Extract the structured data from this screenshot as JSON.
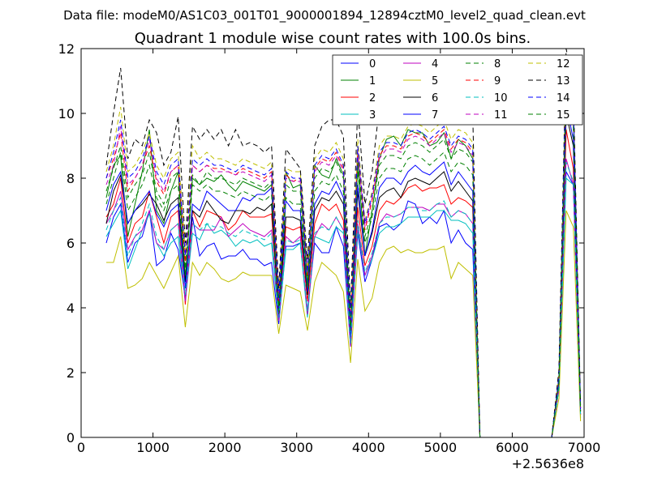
{
  "chart_data": {
    "type": "line",
    "suptitle": "Data file: modeM0/AS1C03_001T01_9000001894_12894cztM0_level2_quad_clean.evt",
    "title": "Quadrant 1 module wise count rates with 100.0s bins.",
    "xlabel": "",
    "ylabel": "",
    "x_offset_label": "+2.5636e8",
    "xlim": [
      0,
      7000
    ],
    "ylim": [
      0,
      12
    ],
    "xticks": [
      0,
      1000,
      2000,
      3000,
      4000,
      5000,
      6000,
      7000
    ],
    "yticks": [
      0,
      2,
      4,
      6,
      8,
      10,
      12
    ],
    "grid": false,
    "legend": {
      "placement": "top-right",
      "columns": 4
    },
    "x": [
      350,
      450,
      550,
      650,
      750,
      850,
      950,
      1050,
      1150,
      1250,
      1350,
      1450,
      1550,
      1650,
      1750,
      1850,
      1950,
      2050,
      2150,
      2250,
      2350,
      2450,
      2550,
      2650,
      2750,
      2850,
      2950,
      3050,
      3150,
      3250,
      3350,
      3450,
      3550,
      3650,
      3750,
      3850,
      3950,
      4050,
      4150,
      4250,
      4350,
      4450,
      4550,
      4650,
      4750,
      4850,
      4950,
      5050,
      5150,
      5250,
      5350,
      5450,
      5550,
      5650,
      5750,
      5850,
      5950,
      6050,
      6150,
      6250,
      6350,
      6450,
      6550,
      6650,
      6750,
      6850,
      6950
    ],
    "series": [
      {
        "name": "0",
        "color": "#0000ff",
        "dash": "",
        "values": [
          6.0,
          6.8,
          7.2,
          5.4,
          6.0,
          6.2,
          7.0,
          5.3,
          5.5,
          6.3,
          5.8,
          4.3,
          6.8,
          5.6,
          5.9,
          6.0,
          5.5,
          5.6,
          5.6,
          5.8,
          5.5,
          5.5,
          5.3,
          5.4,
          3.5,
          5.9,
          5.9,
          6.0,
          3.9,
          6.0,
          5.7,
          5.7,
          6.5,
          5.9,
          2.8,
          6.3,
          4.8,
          5.5,
          6.5,
          6.6,
          6.4,
          6.6,
          7.3,
          7.2,
          6.6,
          6.8,
          6.6,
          7.0,
          6.0,
          6.4,
          6.0,
          5.8,
          0,
          0,
          0,
          0,
          0,
          0,
          0,
          0,
          0,
          0,
          0,
          1.5,
          8.2,
          7.8,
          0.7
        ]
      },
      {
        "name": "1",
        "color": "#008000",
        "dash": "",
        "values": [
          7.4,
          8.4,
          8.7,
          6.2,
          7.2,
          8.2,
          9.5,
          7.0,
          6.6,
          7.6,
          8.2,
          4.9,
          8.0,
          7.8,
          8.0,
          7.9,
          8.1,
          7.8,
          7.6,
          7.9,
          7.8,
          7.7,
          7.6,
          7.8,
          3.6,
          8.2,
          7.7,
          7.8,
          4.7,
          8.4,
          8.1,
          8.0,
          8.6,
          8.1,
          3.0,
          8.5,
          5.6,
          7.0,
          8.6,
          9.2,
          9.3,
          9.0,
          9.5,
          9.4,
          9.4,
          9.0,
          9.1,
          9.4,
          8.6,
          9.2,
          9.0,
          8.6,
          0,
          0,
          0,
          0,
          0,
          0,
          0,
          0,
          0,
          0,
          0,
          1.7,
          11.2,
          10.0,
          0.9
        ]
      },
      {
        "name": "2",
        "color": "#ff0000",
        "dash": "",
        "values": [
          6.8,
          7.2,
          8.0,
          6.0,
          6.6,
          6.8,
          7.6,
          6.8,
          6.0,
          6.8,
          7.0,
          4.1,
          7.0,
          6.5,
          7.0,
          6.9,
          6.8,
          6.4,
          6.6,
          7.0,
          6.8,
          6.8,
          6.8,
          6.9,
          3.9,
          6.5,
          6.4,
          6.5,
          4.2,
          6.6,
          7.2,
          7.0,
          7.2,
          6.7,
          3.0,
          7.1,
          5.3,
          5.9,
          7.0,
          7.3,
          7.2,
          7.4,
          7.7,
          7.8,
          7.6,
          7.7,
          7.7,
          7.8,
          7.2,
          7.4,
          7.3,
          7.1,
          0,
          0,
          0,
          0,
          0,
          0,
          0,
          0,
          0,
          0,
          0,
          1.6,
          9.5,
          8.3,
          0.7
        ]
      },
      {
        "name": "3",
        "color": "#00bfbf",
        "dash": "",
        "values": [
          6.2,
          6.6,
          7.0,
          5.2,
          5.8,
          6.4,
          6.9,
          6.0,
          5.6,
          6.0,
          6.2,
          4.2,
          6.3,
          6.1,
          6.6,
          6.3,
          6.4,
          6.2,
          5.9,
          6.1,
          6.0,
          6.1,
          5.9,
          6.0,
          3.6,
          5.8,
          5.8,
          6.0,
          3.7,
          6.2,
          6.1,
          6.0,
          6.5,
          6.3,
          2.8,
          6.4,
          5.0,
          5.5,
          6.3,
          6.5,
          6.5,
          6.6,
          6.8,
          6.8,
          6.8,
          6.8,
          7.0,
          7.0,
          6.7,
          6.7,
          6.6,
          6.3,
          0,
          0,
          0,
          0,
          0,
          0,
          0,
          0,
          0,
          0,
          0,
          1.5,
          8.0,
          7.8,
          0.6
        ]
      },
      {
        "name": "4",
        "color": "#bf00bf",
        "dash": "",
        "values": [
          6.6,
          7.0,
          7.6,
          5.8,
          6.2,
          6.4,
          7.0,
          6.0,
          5.8,
          6.4,
          6.6,
          4.2,
          6.6,
          6.4,
          6.4,
          6.4,
          6.8,
          6.2,
          6.4,
          6.6,
          6.4,
          6.3,
          6.2,
          6.4,
          3.6,
          6.2,
          6.0,
          6.2,
          3.8,
          6.2,
          6.6,
          6.4,
          6.8,
          6.4,
          2.8,
          6.6,
          5.0,
          5.6,
          6.6,
          6.9,
          6.8,
          6.9,
          7.1,
          7.1,
          7.1,
          7.0,
          7.2,
          7.2,
          6.8,
          7.0,
          6.9,
          6.6,
          0,
          0,
          0,
          0,
          0,
          0,
          0,
          0,
          0,
          0,
          0,
          1.5,
          8.6,
          7.8,
          0.7
        ]
      },
      {
        "name": "5",
        "color": "#bfbf00",
        "dash": "",
        "values": [
          5.4,
          5.4,
          6.2,
          4.6,
          4.7,
          4.9,
          5.4,
          5.0,
          4.6,
          5.1,
          5.6,
          3.4,
          5.4,
          5.0,
          5.4,
          5.2,
          4.9,
          4.8,
          4.9,
          5.1,
          5.0,
          5.0,
          5.0,
          5.0,
          3.2,
          4.7,
          4.6,
          4.5,
          3.3,
          4.8,
          5.4,
          5.2,
          5.0,
          4.5,
          2.3,
          5.5,
          3.9,
          4.3,
          5.4,
          5.8,
          5.9,
          5.7,
          5.8,
          5.7,
          5.7,
          5.8,
          5.8,
          5.9,
          4.9,
          5.4,
          5.2,
          5.0,
          0,
          0,
          0,
          0,
          0,
          0,
          0,
          0,
          0,
          0,
          0,
          1.2,
          7.0,
          6.5,
          0.5
        ]
      },
      {
        "name": "6",
        "color": "#000000",
        "dash": "",
        "values": [
          6.6,
          7.6,
          8.1,
          6.6,
          7.0,
          7.2,
          7.5,
          7.2,
          6.7,
          7.2,
          7.4,
          4.8,
          7.0,
          6.8,
          7.3,
          7.0,
          6.7,
          6.6,
          7.0,
          7.0,
          6.9,
          7.1,
          7.0,
          7.2,
          3.8,
          6.8,
          6.8,
          6.7,
          4.4,
          7.0,
          7.4,
          7.3,
          7.6,
          7.2,
          3.2,
          7.6,
          5.6,
          6.3,
          7.4,
          7.6,
          7.7,
          7.4,
          7.9,
          8.0,
          7.9,
          7.8,
          8.0,
          8.2,
          7.6,
          7.9,
          7.6,
          7.3,
          0,
          0,
          0,
          0,
          0,
          0,
          0,
          0,
          0,
          0,
          0,
          1.7,
          10.0,
          9.0,
          0.8
        ]
      },
      {
        "name": "7",
        "color": "#0000ff",
        "dash": "",
        "values": [
          7.0,
          7.8,
          8.2,
          6.6,
          7.0,
          7.3,
          7.6,
          6.9,
          6.5,
          7.0,
          7.2,
          4.6,
          7.2,
          7.0,
          7.6,
          7.4,
          7.2,
          7.0,
          7.0,
          7.4,
          7.3,
          7.5,
          7.5,
          7.7,
          3.9,
          7.3,
          7.0,
          7.0,
          4.5,
          7.2,
          7.6,
          7.5,
          7.9,
          7.4,
          3.1,
          7.8,
          5.6,
          6.4,
          7.7,
          8.0,
          8.0,
          7.8,
          8.2,
          8.4,
          8.2,
          8.1,
          8.3,
          8.5,
          7.8,
          8.2,
          7.9,
          7.6,
          0,
          0,
          0,
          0,
          0,
          0,
          0,
          0,
          0,
          0,
          0,
          1.7,
          10.3,
          9.2,
          0.8
        ]
      },
      {
        "name": "8",
        "color": "#008000",
        "dash": "6,4",
        "values": [
          7.6,
          8.3,
          9.0,
          7.4,
          7.8,
          8.1,
          8.8,
          7.6,
          7.2,
          8.0,
          8.2,
          5.2,
          8.1,
          7.8,
          8.2,
          8.0,
          8.0,
          7.9,
          7.8,
          8.0,
          7.9,
          7.8,
          7.7,
          7.9,
          4.0,
          7.8,
          7.6,
          7.6,
          4.8,
          8.0,
          8.3,
          8.2,
          8.5,
          8.0,
          3.4,
          8.6,
          6.2,
          7.0,
          8.4,
          8.7,
          8.7,
          8.6,
          9.0,
          9.1,
          9.0,
          8.8,
          9.0,
          9.2,
          8.6,
          8.9,
          8.8,
          8.5,
          0,
          0,
          0,
          0,
          0,
          0,
          0,
          0,
          0,
          0,
          0,
          1.8,
          11.0,
          9.9,
          0.9
        ]
      },
      {
        "name": "9",
        "color": "#ff0000",
        "dash": "6,4",
        "values": [
          8.0,
          8.6,
          9.4,
          7.6,
          8.0,
          8.4,
          9.0,
          7.9,
          7.5,
          8.2,
          8.4,
          5.4,
          8.4,
          8.2,
          8.4,
          8.3,
          8.3,
          8.2,
          8.1,
          8.3,
          8.2,
          8.1,
          8.0,
          8.2,
          4.2,
          8.1,
          7.9,
          8.0,
          5.0,
          8.3,
          8.6,
          8.5,
          8.8,
          8.3,
          3.5,
          8.9,
          6.4,
          7.3,
          8.7,
          9.0,
          9.0,
          8.9,
          9.3,
          9.4,
          9.3,
          9.1,
          9.3,
          9.5,
          8.9,
          9.2,
          9.1,
          8.8,
          0,
          0,
          0,
          0,
          0,
          0,
          0,
          0,
          0,
          0,
          0,
          1.9,
          11.3,
          10.2,
          0.9
        ]
      },
      {
        "name": "10",
        "color": "#00bfbf",
        "dash": "6,4",
        "values": [
          6.4,
          7.0,
          7.4,
          5.6,
          6.2,
          6.6,
          7.2,
          6.2,
          5.8,
          6.4,
          6.6,
          4.4,
          6.6,
          6.4,
          6.6,
          6.5,
          6.5,
          6.3,
          6.2,
          6.4,
          6.3,
          6.2,
          6.1,
          6.3,
          3.7,
          6.1,
          6.0,
          6.1,
          3.9,
          6.3,
          6.5,
          6.4,
          6.8,
          6.4,
          2.9,
          6.7,
          5.1,
          5.7,
          6.6,
          6.8,
          6.8,
          6.9,
          7.1,
          7.1,
          7.0,
          7.0,
          7.2,
          7.3,
          6.8,
          7.0,
          6.9,
          6.6,
          0,
          0,
          0,
          0,
          0,
          0,
          0,
          0,
          0,
          0,
          0,
          1.5,
          8.5,
          7.9,
          0.7
        ]
      },
      {
        "name": "11",
        "color": "#bf00bf",
        "dash": "6,4",
        "values": [
          7.8,
          8.4,
          9.6,
          7.8,
          8.0,
          8.4,
          9.2,
          8.0,
          7.6,
          8.2,
          8.4,
          5.6,
          8.4,
          8.2,
          8.4,
          8.2,
          8.2,
          8.2,
          8.1,
          8.2,
          8.1,
          8.0,
          7.9,
          8.1,
          4.3,
          8.0,
          7.9,
          7.9,
          5.1,
          8.2,
          8.5,
          8.4,
          8.7,
          8.2,
          3.6,
          8.8,
          6.5,
          7.4,
          8.6,
          8.9,
          8.9,
          8.8,
          9.2,
          9.3,
          9.2,
          9.0,
          9.2,
          9.4,
          8.8,
          9.1,
          9.0,
          8.7,
          0,
          0,
          0,
          0,
          0,
          0,
          0,
          0,
          0,
          0,
          0,
          1.9,
          11.2,
          10.1,
          0.9
        ]
      },
      {
        "name": "12",
        "color": "#bfbf00",
        "dash": "6,4",
        "values": [
          8.2,
          9.0,
          10.2,
          8.2,
          8.4,
          8.8,
          9.4,
          8.4,
          8.0,
          8.6,
          8.8,
          5.8,
          9.0,
          8.6,
          8.8,
          8.6,
          8.6,
          8.5,
          8.4,
          8.6,
          8.5,
          8.4,
          8.3,
          8.5,
          4.4,
          8.3,
          8.2,
          8.2,
          5.2,
          8.6,
          8.9,
          8.8,
          9.1,
          8.6,
          3.7,
          9.2,
          6.7,
          7.6,
          9.0,
          9.3,
          9.3,
          9.2,
          9.6,
          9.7,
          9.6,
          9.4,
          9.6,
          9.8,
          9.2,
          9.5,
          9.4,
          9.1,
          0,
          0,
          0,
          0,
          0,
          0,
          0,
          0,
          0,
          0,
          0,
          2.0,
          11.6,
          10.4,
          1.0
        ]
      },
      {
        "name": "13",
        "color": "#000000",
        "dash": "6,4",
        "values": [
          8.4,
          10.0,
          11.4,
          8.6,
          9.2,
          9.0,
          9.8,
          9.4,
          8.4,
          8.8,
          9.9,
          6.0,
          9.6,
          9.2,
          9.5,
          9.2,
          9.5,
          9.0,
          9.5,
          9.0,
          9.1,
          9.0,
          8.8,
          9.0,
          4.6,
          8.9,
          8.6,
          8.3,
          5.5,
          9.0,
          9.6,
          9.8,
          9.8,
          9.3,
          4.0,
          10.2,
          7.2,
          8.2,
          10.2,
          10.4,
          10.2,
          10.3,
          10.5,
          10.5,
          10.6,
          10.4,
          10.5,
          10.9,
          10.2,
          10.6,
          10.4,
          10.0,
          0,
          0,
          0,
          0,
          0,
          0,
          0,
          0,
          0,
          0,
          0,
          2.1,
          12.0,
          10.8,
          1.0
        ]
      },
      {
        "name": "14",
        "color": "#0000ff",
        "dash": "6,4",
        "values": [
          8.0,
          8.8,
          9.8,
          8.0,
          8.2,
          8.6,
          9.3,
          8.2,
          7.8,
          8.4,
          8.6,
          5.6,
          8.6,
          8.4,
          8.6,
          8.4,
          8.4,
          8.3,
          8.2,
          8.4,
          8.3,
          8.2,
          8.1,
          8.3,
          4.3,
          8.2,
          8.0,
          8.0,
          5.1,
          8.4,
          8.7,
          8.6,
          8.9,
          8.4,
          3.6,
          9.0,
          6.6,
          7.5,
          8.8,
          9.1,
          9.1,
          9.0,
          9.4,
          9.5,
          9.4,
          9.2,
          9.4,
          9.6,
          9.0,
          9.3,
          9.2,
          8.9,
          0,
          0,
          0,
          0,
          0,
          0,
          0,
          0,
          0,
          0,
          0,
          1.9,
          11.4,
          10.3,
          0.9
        ]
      },
      {
        "name": "15",
        "color": "#008000",
        "dash": "6,4",
        "values": [
          7.2,
          8.0,
          8.8,
          7.0,
          7.4,
          7.8,
          8.4,
          7.4,
          7.0,
          7.6,
          7.8,
          5.0,
          7.8,
          7.6,
          7.8,
          7.6,
          7.6,
          7.5,
          7.4,
          7.6,
          7.5,
          7.4,
          7.3,
          7.5,
          3.9,
          7.4,
          7.2,
          7.2,
          4.6,
          7.6,
          7.9,
          7.8,
          8.1,
          7.6,
          3.3,
          8.2,
          6.0,
          6.8,
          8.0,
          8.3,
          8.3,
          8.2,
          8.6,
          8.7,
          8.6,
          8.4,
          8.6,
          8.8,
          8.2,
          8.5,
          8.4,
          8.1,
          0,
          0,
          0,
          0,
          0,
          0,
          0,
          0,
          0,
          0,
          0,
          1.7,
          10.6,
          9.6,
          0.8
        ]
      }
    ]
  }
}
